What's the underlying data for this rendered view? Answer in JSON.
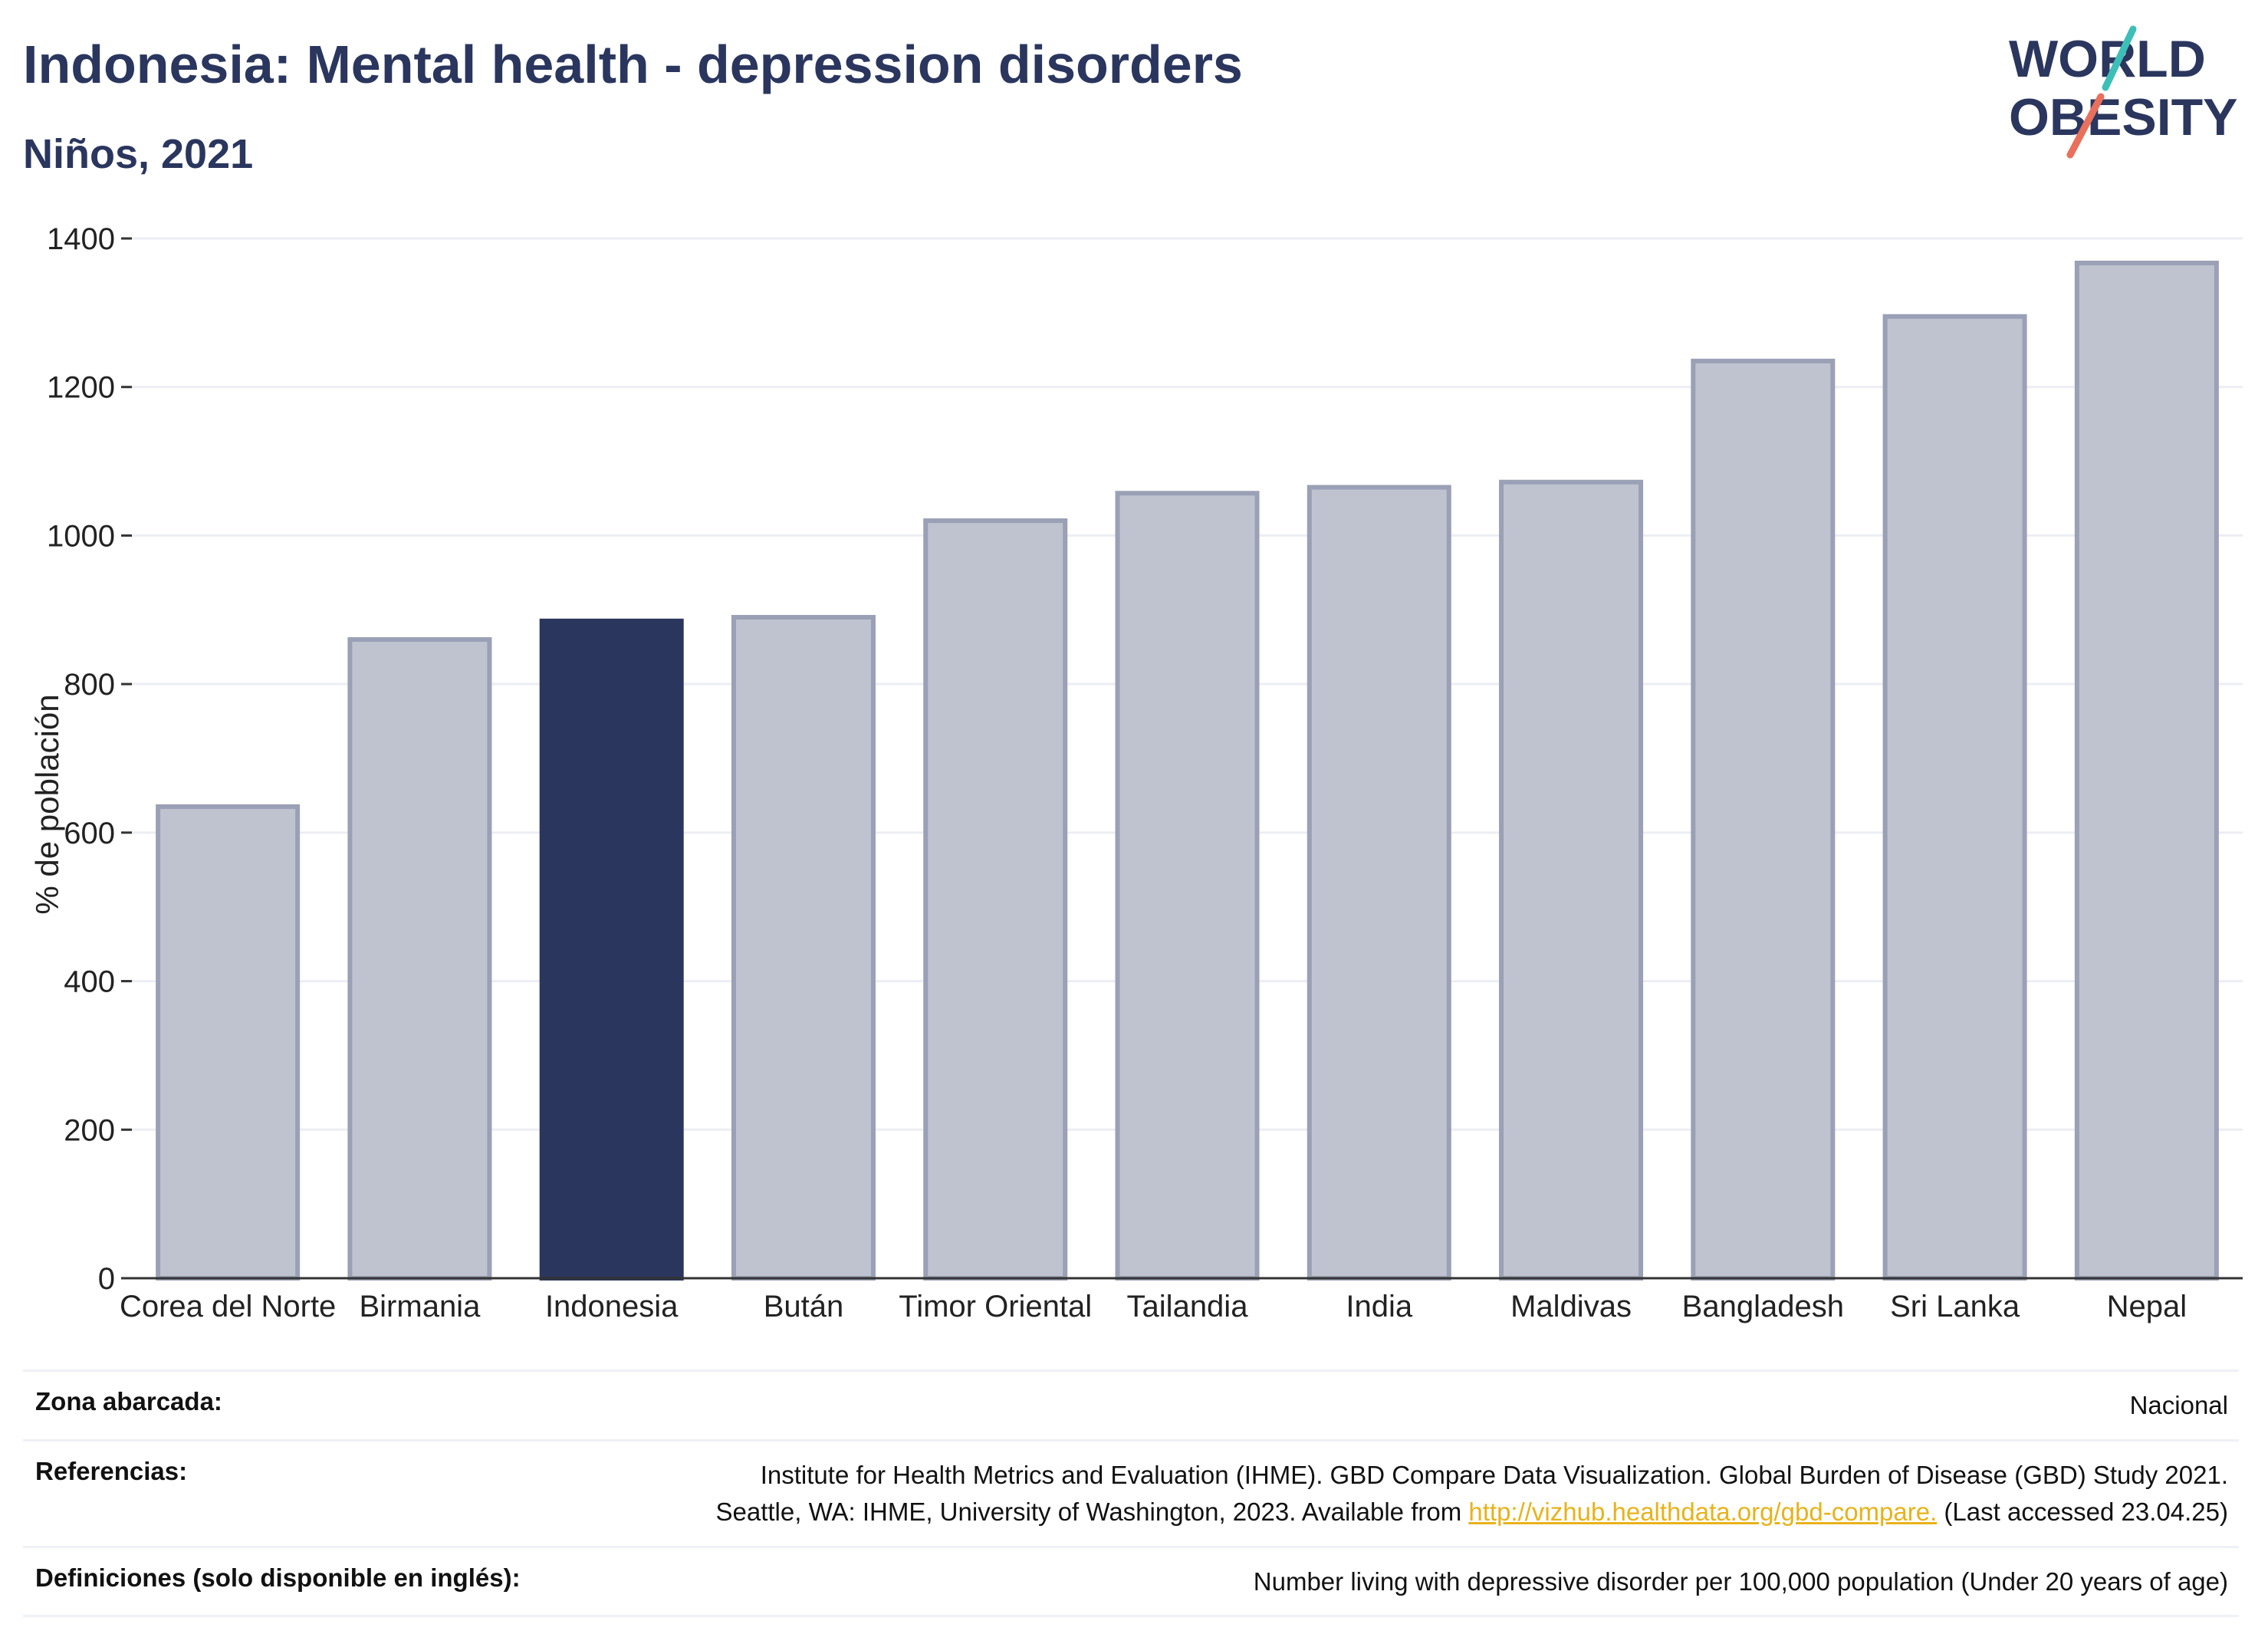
{
  "header": {
    "title": "Indonesia: Mental health - depression disorders",
    "subtitle": "Niños, 2021"
  },
  "logo": {
    "line1": "WORLD",
    "line2": "OBESITY"
  },
  "colors": {
    "highlight": "#2a365e",
    "bar_fill": "#bfc3cf",
    "bar_stroke": "#9aa0b5",
    "slash_teal": "#3cbfb6",
    "slash_red": "#e8705c"
  },
  "chart_data": {
    "type": "bar",
    "ylabel": "% de población",
    "ylim": [
      0,
      1400
    ],
    "yticks": [
      0,
      200,
      400,
      600,
      800,
      1000,
      1200,
      1400
    ],
    "grid": true,
    "categories": [
      "Corea del Norte",
      "Birmania",
      "Indonesia",
      "Bután",
      "Timor Oriental",
      "Tailandia",
      "India",
      "Maldivas",
      "Bangladesh",
      "Sri Lanka",
      "Nepal"
    ],
    "values": [
      635,
      860,
      885,
      890,
      1020,
      1057,
      1065,
      1072,
      1235,
      1295,
      1367
    ],
    "highlight": "Indonesia"
  },
  "meta": {
    "zona_label": "Zona abarcada:",
    "zona_value": "Nacional",
    "ref_label": "Referencias:",
    "ref_line1": "Institute for Health Metrics and Evaluation (IHME). GBD Compare Data Visualization. Global Burden of Disease (GBD) Study 2021.",
    "ref_line2_pre": "Seattle, WA: IHME, University of Washington, 2023. Available from ",
    "ref_link": "http://vizhub.healthdata.org/gbd-compare.",
    "ref_line2_post": " (Last accessed 23.04.25)",
    "def_label": "Definiciones (solo disponible en inglés):",
    "def_value": "Number living with depressive disorder per 100,000 population (Under 20 years of age)"
  }
}
